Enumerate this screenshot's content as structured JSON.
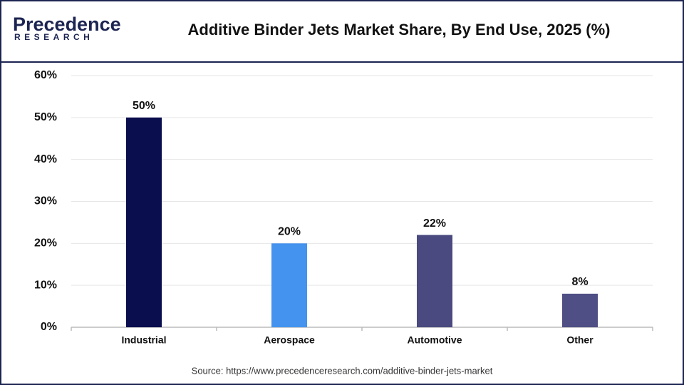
{
  "chart_data": {
    "type": "bar",
    "brand": "Precedence",
    "brand_tagline": "RESEARCH",
    "title": "Additive Binder Jets Market Share, By End Use, 2025 (%)",
    "categories": [
      "Industrial",
      "Aerospace",
      "Automotive",
      "Other"
    ],
    "values": [
      50,
      20,
      22,
      8
    ],
    "value_labels": [
      "50%",
      "20%",
      "22%",
      "8%"
    ],
    "colors": [
      "#0a0e4f",
      "#4493ef",
      "#4a4a80",
      "#4f4f85"
    ],
    "ylim": [
      0,
      60
    ],
    "yticks": [
      {
        "value": 0,
        "label": "0%"
      },
      {
        "value": 10,
        "label": "10%"
      },
      {
        "value": 20,
        "label": "20%"
      },
      {
        "value": 30,
        "label": "30%"
      },
      {
        "value": 40,
        "label": "40%"
      },
      {
        "value": 50,
        "label": "50%"
      },
      {
        "value": 60,
        "label": "60%"
      }
    ],
    "grid": true,
    "source": "Source: https://www.precedenceresearch.com/additive-binder-jets-market"
  }
}
